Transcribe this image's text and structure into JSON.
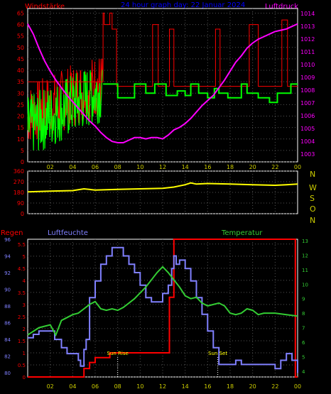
{
  "header": {
    "title": "24 hour graph day: 22 Januar 2024",
    "left_label": "Windstärke",
    "right_label": "Luftdruck"
  },
  "compass": [
    "N",
    "W",
    "S",
    "O",
    "N"
  ],
  "labels": {
    "rain": "Regen",
    "humidity": "Luftfeuchte",
    "temperature": "Temperatur",
    "sunrise": "Sun Rise",
    "sunset": "Sun Set"
  },
  "colors": {
    "wind_speed": "#ff0000",
    "wind_gust": "#00ff00",
    "pressure": "#ff00ff",
    "direction": "#ffff00",
    "rain": "#ff0000",
    "humidity": "#8080ff",
    "temperature": "#33cc33",
    "axis_left": "#ff0000",
    "axis_right": "#ff00ff",
    "axis_time": "#cccc00",
    "grid": "#555555",
    "title": "#0000ff"
  },
  "chart_data": [
    {
      "name": "wind",
      "type": "line",
      "title": "24 hour graph day: 22 Januar 2024",
      "x_ticks": [
        "02",
        "04",
        "06",
        "08",
        "10",
        "12",
        "14",
        "16",
        "18",
        "20",
        "22",
        "00"
      ],
      "y_left_ticks": [
        0,
        5,
        10,
        15,
        20,
        25,
        30,
        35,
        40,
        45,
        50,
        55,
        60,
        65
      ],
      "y_left_range": [
        0,
        67
      ],
      "y_right_ticks": [
        1003,
        1004,
        1005,
        1006,
        1007,
        1008,
        1009,
        1010,
        1011,
        1012,
        1013,
        1014
      ],
      "y_right_range": [
        1002.4,
        1014.4
      ],
      "gust_steps": [
        [
          0,
          35
        ],
        [
          6.7,
          35
        ],
        [
          6.7,
          65
        ],
        [
          6.8,
          65
        ],
        [
          6.8,
          60
        ],
        [
          7.3,
          60
        ],
        [
          7.3,
          65
        ],
        [
          7.5,
          65
        ],
        [
          7.5,
          58
        ],
        [
          7.9,
          58
        ],
        [
          7.9,
          33
        ],
        [
          11.1,
          33
        ],
        [
          11.1,
          60
        ],
        [
          11.6,
          60
        ],
        [
          11.6,
          33
        ],
        [
          12.6,
          33
        ],
        [
          12.6,
          58
        ],
        [
          13.0,
          58
        ],
        [
          13.0,
          33
        ],
        [
          16.7,
          33
        ],
        [
          16.7,
          58
        ],
        [
          17.1,
          58
        ],
        [
          17.1,
          33
        ],
        [
          19.7,
          33
        ],
        [
          19.7,
          60
        ],
        [
          20.5,
          60
        ],
        [
          20.5,
          33
        ],
        [
          22.6,
          33
        ],
        [
          22.6,
          62
        ],
        [
          23.1,
          62
        ],
        [
          23.1,
          33
        ],
        [
          24,
          33
        ]
      ],
      "avg_steps": [
        [
          6.7,
          34
        ],
        [
          8.0,
          34
        ],
        [
          8.0,
          28
        ],
        [
          9.5,
          28
        ],
        [
          9.5,
          34
        ],
        [
          10.5,
          34
        ],
        [
          10.5,
          30
        ],
        [
          11.3,
          30
        ],
        [
          11.3,
          34
        ],
        [
          12.3,
          34
        ],
        [
          12.3,
          29
        ],
        [
          13.3,
          29
        ],
        [
          13.3,
          31
        ],
        [
          14.0,
          31
        ],
        [
          14.0,
          29
        ],
        [
          14.5,
          29
        ],
        [
          14.5,
          34
        ],
        [
          15.2,
          34
        ],
        [
          15.2,
          30
        ],
        [
          16.0,
          30
        ],
        [
          16.0,
          28
        ],
        [
          16.6,
          28
        ],
        [
          16.6,
          32
        ],
        [
          17.0,
          32
        ],
        [
          17.0,
          30
        ],
        [
          17.8,
          30
        ],
        [
          17.8,
          28
        ],
        [
          19.0,
          28
        ],
        [
          19.0,
          34
        ],
        [
          19.5,
          34
        ],
        [
          19.5,
          30
        ],
        [
          20.5,
          30
        ],
        [
          20.5,
          28
        ],
        [
          21.5,
          28
        ],
        [
          21.5,
          26
        ],
        [
          22.2,
          26
        ],
        [
          22.2,
          30
        ],
        [
          23.4,
          30
        ],
        [
          23.4,
          34
        ],
        [
          24,
          34
        ]
      ],
      "pressure": [
        [
          0,
          1013.2
        ],
        [
          0.5,
          1012.4
        ],
        [
          1.0,
          1011.3
        ],
        [
          1.5,
          1010.3
        ],
        [
          2.0,
          1009.5
        ],
        [
          2.5,
          1008.8
        ],
        [
          3.0,
          1008.2
        ],
        [
          3.5,
          1007.6
        ],
        [
          4.0,
          1007.1
        ],
        [
          4.5,
          1006.6
        ],
        [
          5.0,
          1006.1
        ],
        [
          5.5,
          1005.6
        ],
        [
          6.0,
          1005.2
        ],
        [
          6.5,
          1004.7
        ],
        [
          7.0,
          1004.3
        ],
        [
          7.5,
          1004.0
        ],
        [
          8.0,
          1003.9
        ],
        [
          8.5,
          1003.9
        ],
        [
          9.0,
          1004.1
        ],
        [
          9.5,
          1004.3
        ],
        [
          10.0,
          1004.3
        ],
        [
          10.5,
          1004.2
        ],
        [
          11.0,
          1004.3
        ],
        [
          11.5,
          1004.3
        ],
        [
          12.0,
          1004.2
        ],
        [
          12.5,
          1004.5
        ],
        [
          13.0,
          1004.9
        ],
        [
          13.5,
          1005.1
        ],
        [
          14.0,
          1005.4
        ],
        [
          14.5,
          1005.8
        ],
        [
          15.0,
          1006.3
        ],
        [
          15.5,
          1006.8
        ],
        [
          16.0,
          1007.2
        ],
        [
          16.5,
          1007.6
        ],
        [
          17.0,
          1008.2
        ],
        [
          17.5,
          1008.8
        ],
        [
          18.0,
          1009.5
        ],
        [
          18.5,
          1010.2
        ],
        [
          19.0,
          1010.7
        ],
        [
          19.5,
          1011.3
        ],
        [
          20.0,
          1011.7
        ],
        [
          20.5,
          1012.0
        ],
        [
          21.0,
          1012.2
        ],
        [
          21.5,
          1012.4
        ],
        [
          22.0,
          1012.6
        ],
        [
          22.5,
          1012.7
        ],
        [
          23.0,
          1012.8
        ],
        [
          23.5,
          1013.0
        ],
        [
          24,
          1013.2
        ]
      ],
      "wind_speed_range_before_07": [
        10,
        45
      ],
      "wind_gust_range_before_07": [
        5,
        40
      ]
    },
    {
      "name": "direction",
      "type": "line",
      "y_ticks": [
        0,
        90,
        180,
        270,
        360
      ],
      "y_range": [
        0,
        360
      ],
      "values": [
        [
          0,
          185
        ],
        [
          2,
          190
        ],
        [
          4,
          195
        ],
        [
          5,
          210
        ],
        [
          6,
          200
        ],
        [
          8,
          205
        ],
        [
          10,
          210
        ],
        [
          12,
          215
        ],
        [
          13,
          225
        ],
        [
          14,
          245
        ],
        [
          14.5,
          260
        ],
        [
          15,
          250
        ],
        [
          16,
          255
        ],
        [
          18,
          250
        ],
        [
          20,
          245
        ],
        [
          22,
          240
        ],
        [
          23,
          245
        ],
        [
          24,
          250
        ]
      ]
    },
    {
      "name": "climate",
      "type": "line",
      "x_ticks": [
        "02",
        "04",
        "06",
        "08",
        "10",
        "12",
        "14",
        "16",
        "18",
        "20",
        "22",
        "00"
      ],
      "rain_ticks": [
        0,
        0.5,
        1,
        1.5,
        2,
        2.5,
        3,
        3.5,
        4,
        4.5,
        5,
        5.5
      ],
      "rain_range": [
        0,
        5.7
      ],
      "humidity_ticks": [
        80,
        82,
        84,
        86,
        88,
        90,
        92,
        94,
        96
      ],
      "humidity_range": [
        79.5,
        96
      ],
      "temperature_ticks": [
        4,
        5,
        6,
        7,
        8,
        9,
        10,
        11,
        12,
        13
      ],
      "temperature_range": [
        3.6,
        13.1
      ],
      "rain_steps": [
        [
          0,
          0
        ],
        [
          5.0,
          0
        ],
        [
          5.0,
          0.35
        ],
        [
          5.5,
          0.35
        ],
        [
          5.5,
          0.6
        ],
        [
          6.0,
          0.6
        ],
        [
          6.0,
          0.8
        ],
        [
          7.3,
          0.8
        ],
        [
          7.3,
          1.0
        ],
        [
          12.6,
          1.0
        ],
        [
          12.6,
          3.3
        ],
        [
          13.0,
          3.3
        ],
        [
          13.0,
          5.7
        ],
        [
          23.8,
          5.7
        ],
        [
          23.8,
          0
        ],
        [
          24,
          0
        ]
      ],
      "humidity": [
        [
          0,
          84.2
        ],
        [
          0.5,
          84.6
        ],
        [
          1.0,
          85.0
        ],
        [
          2.0,
          85.0
        ],
        [
          2.4,
          84.0
        ],
        [
          3.0,
          83.0
        ],
        [
          3.5,
          82.3
        ],
        [
          4.0,
          82.3
        ],
        [
          4.5,
          81.5
        ],
        [
          4.7,
          80.8
        ],
        [
          5.0,
          82.8
        ],
        [
          5.2,
          84.0
        ],
        [
          5.5,
          89.0
        ],
        [
          6.0,
          91.0
        ],
        [
          6.5,
          93.0
        ],
        [
          7.0,
          94.0
        ],
        [
          7.5,
          95.0
        ],
        [
          8.0,
          95.0
        ],
        [
          8.5,
          94.0
        ],
        [
          9.0,
          93.0
        ],
        [
          9.5,
          92.0
        ],
        [
          10.0,
          90.5
        ],
        [
          10.5,
          89.0
        ],
        [
          11.0,
          88.5
        ],
        [
          11.5,
          88.5
        ],
        [
          12.0,
          89.5
        ],
        [
          12.5,
          90.5
        ],
        [
          12.8,
          92.5
        ],
        [
          13.0,
          94.0
        ],
        [
          13.2,
          93.0
        ],
        [
          13.5,
          93.5
        ],
        [
          14.0,
          92.5
        ],
        [
          14.5,
          91.0
        ],
        [
          15.0,
          89.0
        ],
        [
          15.5,
          87.0
        ],
        [
          16.0,
          85.0
        ],
        [
          16.5,
          83.0
        ],
        [
          17.0,
          81.0
        ],
        [
          17.5,
          81.0
        ],
        [
          18.0,
          81.0
        ],
        [
          18.5,
          81.5
        ],
        [
          19.0,
          81.0
        ],
        [
          20.0,
          81.0
        ],
        [
          21.0,
          81.0
        ],
        [
          22.0,
          80.5
        ],
        [
          22.5,
          81.5
        ],
        [
          23.0,
          82.3
        ],
        [
          23.5,
          81.5
        ],
        [
          24.0,
          80.0
        ]
      ],
      "temperature": [
        [
          0,
          6.5
        ],
        [
          1.0,
          7.0
        ],
        [
          2.0,
          7.2
        ],
        [
          2.5,
          6.5
        ],
        [
          3.0,
          7.5
        ],
        [
          3.5,
          7.7
        ],
        [
          4.0,
          7.9
        ],
        [
          4.5,
          8.0
        ],
        [
          5.0,
          8.3
        ],
        [
          5.5,
          8.6
        ],
        [
          6.0,
          8.8
        ],
        [
          6.5,
          8.3
        ],
        [
          7.0,
          8.2
        ],
        [
          7.5,
          8.3
        ],
        [
          8.0,
          8.2
        ],
        [
          8.5,
          8.4
        ],
        [
          9.0,
          8.7
        ],
        [
          9.5,
          9.0
        ],
        [
          10.0,
          9.4
        ],
        [
          10.5,
          9.8
        ],
        [
          11.0,
          10.3
        ],
        [
          11.5,
          10.8
        ],
        [
          12.0,
          11.2
        ],
        [
          12.5,
          10.8
        ],
        [
          13.0,
          10.3
        ],
        [
          13.5,
          9.8
        ],
        [
          14.0,
          9.2
        ],
        [
          14.5,
          9.0
        ],
        [
          15.0,
          9.1
        ],
        [
          15.5,
          8.7
        ],
        [
          16.0,
          8.5
        ],
        [
          16.5,
          8.6
        ],
        [
          17.0,
          8.7
        ],
        [
          17.5,
          8.5
        ],
        [
          18.0,
          8.0
        ],
        [
          18.5,
          7.9
        ],
        [
          19.0,
          8.0
        ],
        [
          19.5,
          8.3
        ],
        [
          20.0,
          8.2
        ],
        [
          20.5,
          7.9
        ],
        [
          21.0,
          8.0
        ],
        [
          22.0,
          8.0
        ],
        [
          23.0,
          7.9
        ],
        [
          24.0,
          7.8
        ]
      ],
      "sunrise_hour": 8.0,
      "sunset_hour": 16.9
    }
  ]
}
